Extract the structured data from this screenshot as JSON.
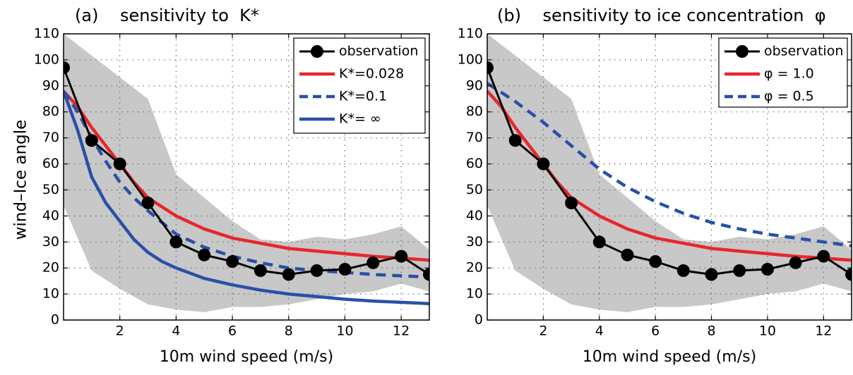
{
  "figure": {
    "ylabel": "wind–Ice angle"
  },
  "chart_data": [
    {
      "type": "line",
      "title": "(a)    sensitivity to  K*",
      "xlabel": "10m wind speed (m/s)",
      "ylabel": "wind–Ice angle",
      "xlim": [
        0,
        13
      ],
      "ylim": [
        0,
        110
      ],
      "xticks": [
        2,
        4,
        6,
        8,
        10,
        12
      ],
      "yticks": [
        0,
        10,
        20,
        30,
        40,
        50,
        60,
        70,
        80,
        90,
        100,
        110
      ],
      "grid": "dotted",
      "legend_position": "top-right",
      "band": {
        "upper": [
          [
            0,
            110
          ],
          [
            3,
            85
          ],
          [
            4,
            56
          ],
          [
            5,
            47
          ],
          [
            6,
            38
          ],
          [
            7,
            31
          ],
          [
            8,
            30
          ],
          [
            9,
            32
          ],
          [
            10,
            31
          ],
          [
            11,
            33
          ],
          [
            12,
            36
          ],
          [
            13,
            27
          ]
        ],
        "lower": [
          [
            0,
            44
          ],
          [
            1,
            19
          ],
          [
            2,
            12
          ],
          [
            3,
            6
          ],
          [
            4,
            4
          ],
          [
            5,
            3
          ],
          [
            6,
            5
          ],
          [
            7,
            5
          ],
          [
            8,
            6
          ],
          [
            9,
            8
          ],
          [
            10,
            10
          ],
          [
            11,
            11
          ],
          [
            12,
            14
          ],
          [
            13,
            11
          ]
        ],
        "color": "#c8c8c8"
      },
      "series": [
        {
          "name": "observation",
          "color": "#000000",
          "style": "line-markers",
          "x": [
            0,
            1,
            2,
            3,
            4,
            5,
            6,
            7,
            8,
            9,
            10,
            11,
            12,
            13
          ],
          "y": [
            97,
            69,
            60,
            45,
            30,
            25,
            22.5,
            19,
            17.5,
            19,
            19.5,
            22,
            24.5,
            17.5
          ]
        },
        {
          "name": "K*=0.028",
          "color": "#e8262b",
          "style": "solid",
          "x": [
            0,
            0.5,
            1,
            1.5,
            2,
            2.5,
            3,
            4,
            5,
            6,
            7,
            8,
            9,
            10,
            11,
            12,
            13
          ],
          "y": [
            88,
            82,
            74,
            67,
            60,
            53,
            47,
            40,
            35,
            31.5,
            29.5,
            27.5,
            26.5,
            25.5,
            24.5,
            23.8,
            23
          ]
        },
        {
          "name": "K*=0.1",
          "color": "#2a4fa8",
          "style": "dashed",
          "x": [
            0,
            0.5,
            1,
            1.5,
            2,
            2.5,
            3,
            4,
            5,
            6,
            7,
            8,
            9,
            10,
            11,
            12,
            13
          ],
          "y": [
            88,
            80,
            70,
            61,
            53,
            47,
            42,
            33,
            28,
            24.5,
            22,
            20,
            19,
            18.3,
            17.5,
            17,
            16.5
          ]
        },
        {
          "name": "K*= ∞",
          "color": "#2a4fa8",
          "style": "solid",
          "x": [
            0,
            0.5,
            1,
            1.5,
            2,
            2.5,
            3,
            3.5,
            4,
            5,
            6,
            7,
            8,
            9,
            10,
            11,
            12,
            13
          ],
          "y": [
            88,
            73,
            55,
            45,
            38,
            31,
            26,
            22.5,
            20,
            16,
            13.5,
            11.5,
            10,
            9,
            8,
            7.3,
            6.8,
            6.3
          ]
        }
      ]
    },
    {
      "type": "line",
      "title": "(b)    sensitivity to ice concentration  φ",
      "xlabel": "10m wind speed (m/s)",
      "xlim": [
        0,
        13
      ],
      "ylim": [
        0,
        110
      ],
      "xticks": [
        2,
        4,
        6,
        8,
        10,
        12
      ],
      "yticks": [
        0,
        10,
        20,
        30,
        40,
        50,
        60,
        70,
        80,
        90,
        100,
        110
      ],
      "grid": "dotted",
      "legend_position": "top-right",
      "band": {
        "upper": [
          [
            0,
            110
          ],
          [
            3,
            85
          ],
          [
            4,
            56
          ],
          [
            5,
            47
          ],
          [
            6,
            38
          ],
          [
            7,
            31
          ],
          [
            8,
            30
          ],
          [
            9,
            32
          ],
          [
            10,
            31
          ],
          [
            11,
            33
          ],
          [
            12,
            36
          ],
          [
            13,
            27
          ]
        ],
        "lower": [
          [
            0,
            44
          ],
          [
            1,
            19
          ],
          [
            2,
            12
          ],
          [
            3,
            6
          ],
          [
            4,
            4
          ],
          [
            5,
            3
          ],
          [
            6,
            5
          ],
          [
            7,
            5
          ],
          [
            8,
            6
          ],
          [
            9,
            8
          ],
          [
            10,
            10
          ],
          [
            11,
            11
          ],
          [
            12,
            14
          ],
          [
            13,
            11
          ]
        ],
        "color": "#c8c8c8"
      },
      "series": [
        {
          "name": "observation",
          "color": "#000000",
          "style": "line-markers",
          "x": [
            0,
            1,
            2,
            3,
            4,
            5,
            6,
            7,
            8,
            9,
            10,
            11,
            12,
            13
          ],
          "y": [
            97,
            69,
            60,
            45,
            30,
            25,
            22.5,
            19,
            17.5,
            19,
            19.5,
            22,
            24.5,
            17.5
          ]
        },
        {
          "name": "φ = 1.0",
          "color": "#e8262b",
          "style": "solid",
          "x": [
            0,
            0.5,
            1,
            1.5,
            2,
            2.5,
            3,
            4,
            5,
            6,
            7,
            8,
            9,
            10,
            11,
            12,
            13
          ],
          "y": [
            88,
            82,
            74,
            67,
            60,
            53,
            47,
            40,
            35,
            31.5,
            29.5,
            27.5,
            26.5,
            25.5,
            24.5,
            23.8,
            23
          ]
        },
        {
          "name": "φ = 0.5",
          "color": "#2a4fa8",
          "style": "dashed",
          "x": [
            0,
            1,
            2,
            3,
            4,
            5,
            6,
            7,
            8,
            9,
            10,
            11,
            12,
            13
          ],
          "y": [
            91,
            84,
            76,
            67,
            58,
            51,
            45.5,
            41,
            37.5,
            35,
            33,
            31.5,
            30,
            28.5
          ]
        }
      ]
    }
  ]
}
